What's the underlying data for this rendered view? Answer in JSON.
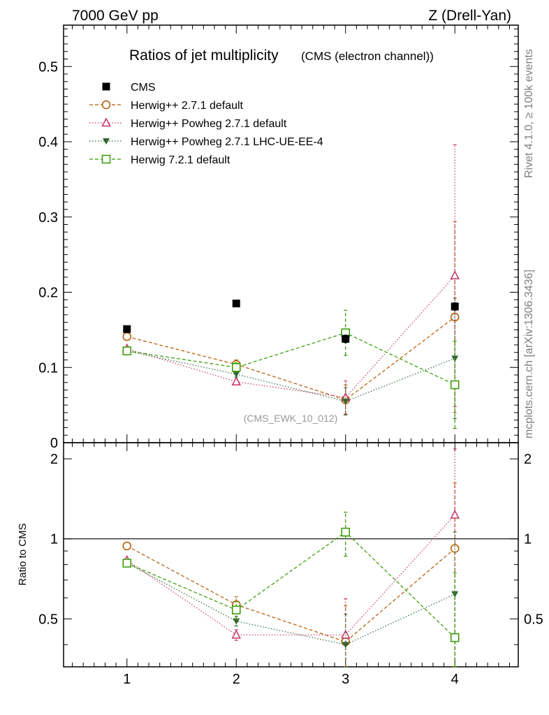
{
  "header": {
    "energy_label": "7000 GeV pp",
    "process_label": "Z (Drell-Yan)"
  },
  "side": {
    "rivet": "Rivet 4.1.0, ≥ 100k events",
    "mcplots": "mcplots.cern.ch [arXiv:1306.3436]"
  },
  "chart_data": {
    "type": "scatter",
    "title": "Ratios of jet multiplicity",
    "subtitle": "(CMS (electron channel))",
    "analysis_tag": "(CMS_EWK_10_012)",
    "x": [
      1,
      2,
      3,
      4
    ],
    "xlim": [
      0.42,
      4.58
    ],
    "xticks": [
      "1",
      "2",
      "3",
      "4"
    ],
    "main": {
      "ylim": [
        0,
        0.555
      ],
      "yticks": [
        "0",
        "0.1",
        "0.2",
        "0.3",
        "0.4",
        "0.5"
      ],
      "ytick_values": [
        0,
        0.1,
        0.2,
        0.3,
        0.4,
        0.5
      ],
      "legend_position": "top-left"
    },
    "ratio": {
      "ylabel": "Ratio to CMS",
      "ylim": [
        0.33,
        2.3
      ],
      "yticks_left": [
        "0.5",
        "1",
        "2"
      ],
      "yticks_right": [
        "0.5",
        "1",
        "2"
      ],
      "ytick_values": [
        0.5,
        1,
        2
      ],
      "reference_line": 1
    },
    "series": [
      {
        "name": "CMS",
        "color": "#000000",
        "marker": "filled-square",
        "line": "none",
        "values": [
          0.151,
          0.185,
          0.138,
          0.181
        ],
        "errors": [
          0.003,
          0.003,
          0.005,
          0.005
        ],
        "ratio": [
          1.0,
          1.0,
          1.0,
          1.0
        ],
        "ratio_errors": [
          0,
          0,
          0,
          0
        ]
      },
      {
        "name": "Herwig++ 2.7.1 default",
        "color": "#b35900",
        "marker": "open-circle",
        "line": "dashed",
        "values": [
          0.141,
          0.104,
          0.057,
          0.167
        ],
        "errors": [
          0.001,
          0.006,
          0.02,
          0.127
        ],
        "ratio": [
          0.94,
          0.565,
          0.41,
          0.92
        ],
        "ratio_errors": [
          0.01,
          0.04,
          0.15,
          0.7
        ]
      },
      {
        "name": "Herwig++ Powheg 2.7.1 default",
        "color": "#cc3366",
        "marker": "open-triangle",
        "line": "dotted",
        "values": [
          0.125,
          0.081,
          0.06,
          0.222
        ],
        "errors": [
          0.001,
          0.003,
          0.022,
          0.174
        ],
        "ratio": [
          0.83,
          0.435,
          0.435,
          1.23
        ],
        "ratio_errors": [
          0.01,
          0.02,
          0.16,
          0.95
        ]
      },
      {
        "name": "Herwig++ Powheg 2.7.1 LHC-UE-EE-4",
        "color": "#336633",
        "marker": "filled-triangle-down",
        "line": "dotted",
        "values": [
          0.122,
          0.091,
          0.055,
          0.112
        ],
        "errors": [
          0.001,
          0.004,
          0.018,
          0.08
        ],
        "ratio": [
          0.81,
          0.49,
          0.4,
          0.62
        ],
        "ratio_errors": [
          0.01,
          0.02,
          0.12,
          0.44
        ]
      },
      {
        "name": "Herwig 7.2.1 default",
        "color": "#339900",
        "marker": "open-square",
        "line": "dashed",
        "values": [
          0.122,
          0.1,
          0.146,
          0.077
        ],
        "errors": [
          0.002,
          0.006,
          0.03,
          0.058
        ],
        "ratio": [
          0.81,
          0.54,
          1.06,
          0.425
        ],
        "ratio_errors": [
          0.01,
          0.04,
          0.2,
          0.32
        ]
      }
    ]
  }
}
